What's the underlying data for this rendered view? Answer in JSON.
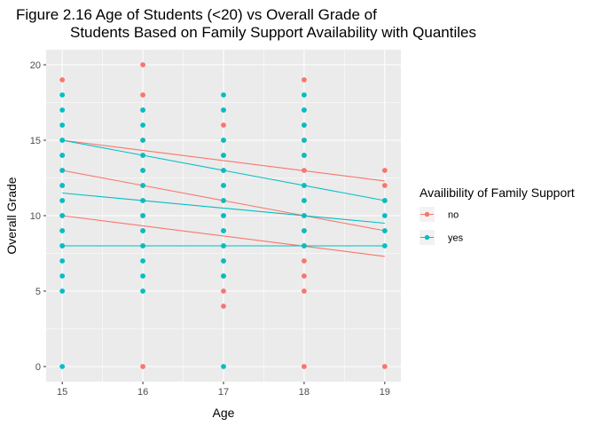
{
  "chart_data": {
    "type": "scatter",
    "title_lines": [
      "Figure 2.16 Age of Students (<20) vs Overall Grade of",
      "Students Based on Family Support Availability with Quantiles"
    ],
    "xlabel": "Age",
    "ylabel": "Overall Grade",
    "xlim": [
      14.8,
      19.2
    ],
    "ylim": [
      -1.0,
      21.0
    ],
    "x_ticks": [
      15,
      16,
      17,
      18,
      19
    ],
    "y_ticks": [
      0,
      5,
      10,
      15,
      20
    ],
    "grid": true,
    "legend": {
      "title": "Availibility of Family Support",
      "position": "right",
      "entries": [
        "no",
        "yes"
      ]
    },
    "colors": {
      "no": "#F8766D",
      "yes": "#00BFC4",
      "panel": "#EBEBEB",
      "grid": "#FFFFFF"
    },
    "series": [
      {
        "name": "no",
        "points": [
          [
            15,
            19
          ],
          [
            15,
            15
          ],
          [
            15,
            14
          ],
          [
            15,
            13
          ],
          [
            15,
            12
          ],
          [
            15,
            11
          ],
          [
            15,
            10
          ],
          [
            15,
            9
          ],
          [
            15,
            8
          ],
          [
            16,
            20
          ],
          [
            16,
            18
          ],
          [
            16,
            17
          ],
          [
            16,
            15
          ],
          [
            16,
            14
          ],
          [
            16,
            13
          ],
          [
            16,
            12
          ],
          [
            16,
            11
          ],
          [
            16,
            10
          ],
          [
            16,
            9
          ],
          [
            16,
            8
          ],
          [
            16,
            0
          ],
          [
            17,
            17
          ],
          [
            17,
            16
          ],
          [
            17,
            15
          ],
          [
            17,
            14
          ],
          [
            17,
            13
          ],
          [
            17,
            12
          ],
          [
            17,
            11
          ],
          [
            17,
            10
          ],
          [
            17,
            9
          ],
          [
            17,
            8
          ],
          [
            17,
            7
          ],
          [
            17,
            6
          ],
          [
            17,
            5
          ],
          [
            17,
            4
          ],
          [
            18,
            19
          ],
          [
            18,
            17
          ],
          [
            18,
            16
          ],
          [
            18,
            15
          ],
          [
            18,
            14
          ],
          [
            18,
            13
          ],
          [
            18,
            12
          ],
          [
            18,
            11
          ],
          [
            18,
            10
          ],
          [
            18,
            9
          ],
          [
            18,
            8
          ],
          [
            18,
            7
          ],
          [
            18,
            6
          ],
          [
            18,
            5
          ],
          [
            18,
            0
          ],
          [
            19,
            13
          ],
          [
            19,
            12
          ],
          [
            19,
            11
          ],
          [
            19,
            9
          ],
          [
            19,
            0
          ]
        ],
        "quantile_lines": [
          {
            "x": [
              15,
              19
            ],
            "y": [
              15.0,
              12.3
            ]
          },
          {
            "x": [
              15,
              19
            ],
            "y": [
              13.0,
              9.0
            ]
          },
          {
            "x": [
              15,
              19
            ],
            "y": [
              10.0,
              7.3
            ]
          }
        ]
      },
      {
        "name": "yes",
        "points": [
          [
            15,
            18
          ],
          [
            15,
            17
          ],
          [
            15,
            16
          ],
          [
            15,
            15
          ],
          [
            15,
            14
          ],
          [
            15,
            13
          ],
          [
            15,
            12
          ],
          [
            15,
            11
          ],
          [
            15,
            10
          ],
          [
            15,
            9
          ],
          [
            15,
            8
          ],
          [
            15,
            7
          ],
          [
            15,
            6
          ],
          [
            15,
            5
          ],
          [
            15,
            0
          ],
          [
            16,
            17
          ],
          [
            16,
            16
          ],
          [
            16,
            15
          ],
          [
            16,
            14
          ],
          [
            16,
            13
          ],
          [
            16,
            12
          ],
          [
            16,
            11
          ],
          [
            16,
            10
          ],
          [
            16,
            9
          ],
          [
            16,
            8
          ],
          [
            16,
            7
          ],
          [
            16,
            6
          ],
          [
            16,
            5
          ],
          [
            17,
            18
          ],
          [
            17,
            17
          ],
          [
            17,
            15
          ],
          [
            17,
            14
          ],
          [
            17,
            13
          ],
          [
            17,
            12
          ],
          [
            17,
            11
          ],
          [
            17,
            10
          ],
          [
            17,
            9
          ],
          [
            17,
            8
          ],
          [
            17,
            7
          ],
          [
            17,
            6
          ],
          [
            17,
            0
          ],
          [
            18,
            18
          ],
          [
            18,
            17
          ],
          [
            18,
            16
          ],
          [
            18,
            15
          ],
          [
            18,
            14
          ],
          [
            18,
            12
          ],
          [
            18,
            11
          ],
          [
            18,
            10
          ],
          [
            18,
            9
          ],
          [
            18,
            8
          ],
          [
            19,
            11
          ],
          [
            19,
            10
          ],
          [
            19,
            9
          ],
          [
            19,
            8
          ]
        ],
        "quantile_lines": [
          {
            "x": [
              15,
              19
            ],
            "y": [
              15.0,
              11.0
            ]
          },
          {
            "x": [
              15,
              19
            ],
            "y": [
              11.5,
              9.5
            ]
          },
          {
            "x": [
              15,
              19
            ],
            "y": [
              8.0,
              8.0
            ]
          }
        ]
      }
    ]
  }
}
